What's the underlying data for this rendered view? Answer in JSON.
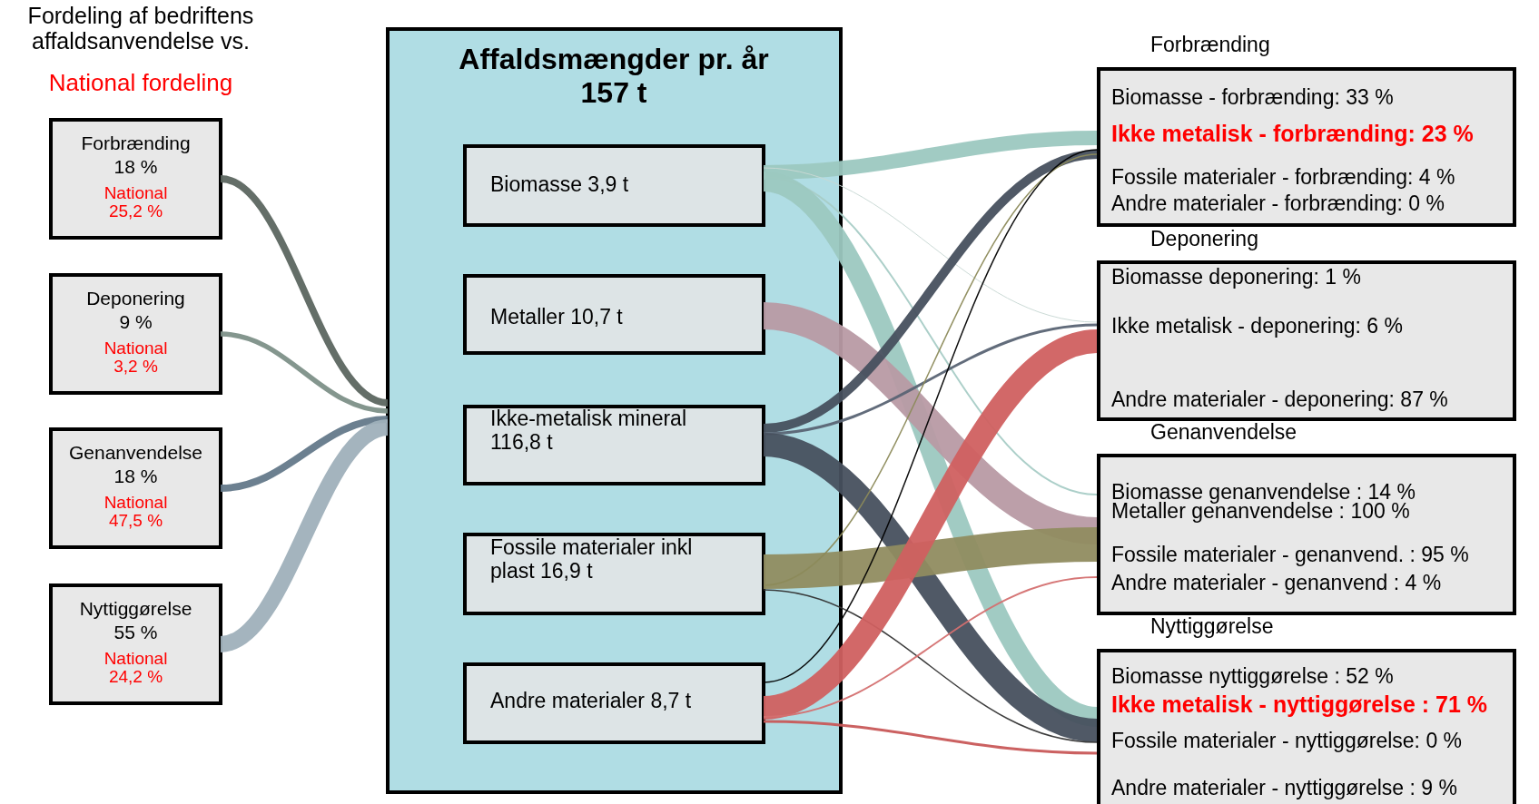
{
  "chart_data": {
    "type": "other",
    "title": "Fordeling af bedriftens affaldsanvendelse vs.",
    "subtitle": "National fordeling",
    "categories": [
      "Forbrænding",
      "Deponering",
      "Genanvendelse",
      "Nyttiggørelse"
    ],
    "series": [
      {
        "values": [
          18,
          9,
          18,
          55
        ],
        "value_labels": [
          "18 %",
          "9 %",
          "18 %",
          "55 %"
        ]
      },
      {
        "name": "National",
        "color": "#ff0000",
        "values": [
          25.2,
          3.2,
          47.5,
          24.2
        ],
        "value_labels": [
          "25,2 %",
          "3,2 %",
          "47,5 %",
          "24,2 %"
        ]
      }
    ],
    "annotations": [
      "Affaldsmængder pr. år",
      "157 t",
      "Biomasse 3,9 t",
      "Metaller 10,7 t",
      "Ikke-metalisk mineral\n116,8 t",
      "Fossile materialer inkl\nplast 16,9 t",
      "Andre materialer 8,7 t",
      "Forbrænding",
      "Biomasse - forbrænding: 33 %",
      "Ikke metalisk - forbrænding: 23 %",
      "Fossile materialer - forbrænding: 4 %",
      "Andre materialer - forbrænding: 0 %",
      "Deponering",
      "Biomasse deponering: 1 %",
      "Ikke metalisk - deponering: 6 %",
      "Andre materialer - deponering: 87 %",
      "Genanvendelse",
      "Biomasse genanvendelse : 14 %",
      "Metaller genanvendelse : 100 %",
      "Fossile materialer - genanvend. : 95 %",
      "Andre materialer - genanvend : 4 %",
      "Nyttiggørelse",
      "Biomasse nyttiggørelse : 52 %",
      "Ikke metalisk - nyttiggørelse : 71 %",
      "Fossile materialer - nyttiggørelse: 0 %",
      "Andre materialer - nyttiggørelse : 9 %"
    ]
  }
}
